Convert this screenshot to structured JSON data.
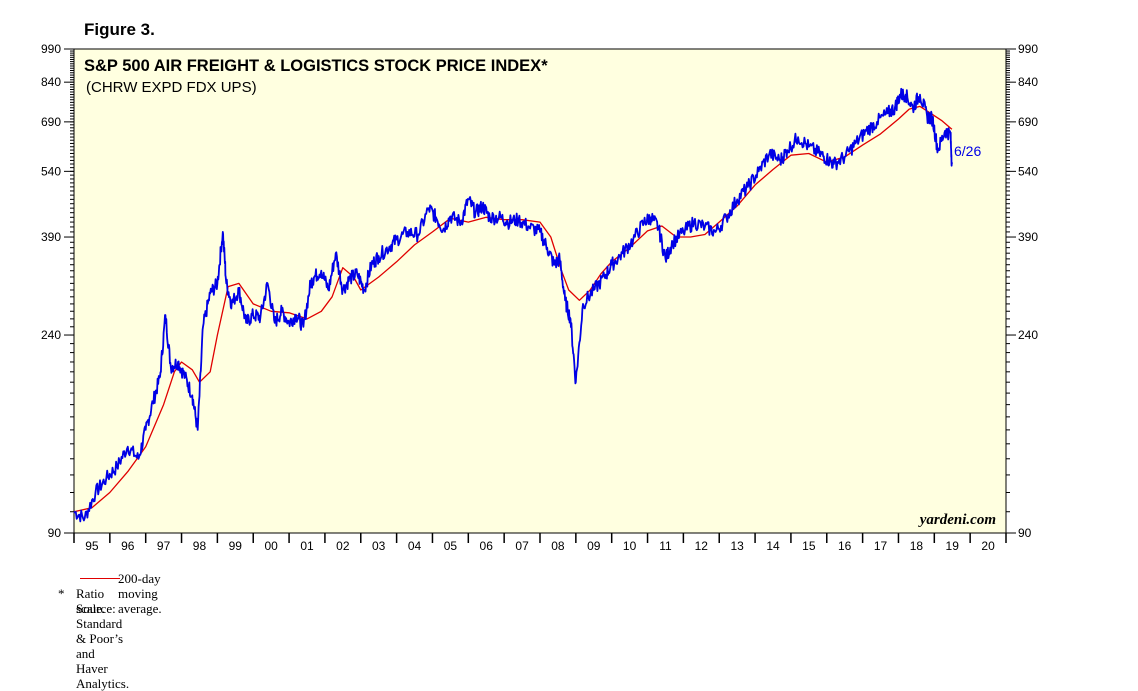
{
  "figure_label": "Figure 3.",
  "chart_data": {
    "type": "line",
    "title": "S&P 500 AIR FREIGHT & LOGISTICS STOCK PRICE INDEX*",
    "subtitle": "(CHRW EXPD FDX UPS)",
    "scale": "log",
    "ylim": [
      90,
      990
    ],
    "y_ticks": [
      90,
      240,
      390,
      540,
      690,
      840,
      990
    ],
    "y_tick_labels": [
      "90",
      "240",
      "390",
      "540",
      "690",
      "840",
      "990"
    ],
    "xlim": [
      1995,
      2021
    ],
    "x_tick_labels": [
      "95",
      "96",
      "97",
      "98",
      "99",
      "00",
      "01",
      "02",
      "03",
      "04",
      "05",
      "06",
      "07",
      "08",
      "09",
      "10",
      "11",
      "12",
      "13",
      "14",
      "15",
      "16",
      "17",
      "18",
      "19",
      "20"
    ],
    "series": [
      {
        "name": "S&P 500 Air Freight & Logistics",
        "color": "#0000e6",
        "x": [
          1995.0,
          1995.3,
          1995.6,
          1995.9,
          1996.2,
          1996.5,
          1996.8,
          1997.0,
          1997.2,
          1997.4,
          1997.55,
          1997.7,
          1997.9,
          1998.1,
          1998.3,
          1998.45,
          1998.6,
          1998.8,
          1999.0,
          1999.15,
          1999.25,
          1999.4,
          1999.6,
          1999.8,
          2000.0,
          2000.2,
          2000.4,
          2000.6,
          2000.8,
          2001.0,
          2001.2,
          2001.4,
          2001.6,
          2001.7,
          2001.9,
          2002.1,
          2002.3,
          2002.5,
          2002.7,
          2002.9,
          2003.1,
          2003.3,
          2003.5,
          2003.8,
          2004.0,
          2004.3,
          2004.6,
          2004.9,
          2005.1,
          2005.3,
          2005.5,
          2005.8,
          2006.0,
          2006.2,
          2006.4,
          2006.6,
          2006.9,
          2007.1,
          2007.4,
          2007.7,
          2008.0,
          2008.2,
          2008.4,
          2008.55,
          2008.7,
          2008.85,
          2009.0,
          2009.2,
          2009.5,
          2009.8,
          2010.0,
          2010.3,
          2010.6,
          2010.9,
          2011.1,
          2011.3,
          2011.5,
          2011.7,
          2012.0,
          2012.3,
          2012.6,
          2012.9,
          2013.2,
          2013.5,
          2013.8,
          2014.1,
          2014.4,
          2014.7,
          2014.9,
          2015.2,
          2015.5,
          2015.8,
          2016.0,
          2016.2,
          2016.5,
          2016.8,
          2017.1,
          2017.4,
          2017.7,
          2017.9,
          2018.05,
          2018.2,
          2018.4,
          2018.6,
          2018.8,
          2018.95,
          2019.1,
          2019.3,
          2019.45,
          2019.49
        ],
        "values": [
          100,
          97,
          110,
          118,
          125,
          138,
          130,
          150,
          172,
          195,
          265,
          205,
          210,
          195,
          178,
          150,
          250,
          295,
          310,
          400,
          310,
          280,
          300,
          255,
          265,
          262,
          310,
          255,
          270,
          255,
          265,
          250,
          310,
          320,
          330,
          300,
          360,
          300,
          318,
          325,
          300,
          340,
          355,
          372,
          385,
          400,
          395,
          450,
          430,
          405,
          432,
          420,
          470,
          440,
          455,
          430,
          430,
          420,
          425,
          410,
          400,
          370,
          340,
          350,
          285,
          260,
          190,
          280,
          300,
          320,
          340,
          360,
          385,
          420,
          430,
          410,
          350,
          380,
          400,
          420,
          410,
          400,
          430,
          470,
          500,
          540,
          590,
          570,
          600,
          640,
          610,
          590,
          575,
          560,
          580,
          620,
          660,
          690,
          720,
          740,
          790,
          790,
          740,
          790,
          710,
          700,
          600,
          660,
          650,
          560
        ],
        "end_label": "6/26"
      },
      {
        "name": "200-day moving average.",
        "color": "#e00000",
        "x": [
          1995.0,
          1995.5,
          1996.0,
          1996.5,
          1997.0,
          1997.5,
          1997.8,
          1998.0,
          1998.3,
          1998.5,
          1998.8,
          1999.0,
          1999.3,
          1999.6,
          2000.0,
          2000.5,
          2001.0,
          2001.5,
          2001.9,
          2002.2,
          2002.5,
          2002.8,
          2003.0,
          2003.5,
          2004.0,
          2004.5,
          2005.0,
          2005.5,
          2006.0,
          2006.5,
          2007.0,
          2007.5,
          2008.0,
          2008.3,
          2008.6,
          2008.8,
          2009.1,
          2009.4,
          2009.7,
          2010.0,
          2010.5,
          2011.0,
          2011.4,
          2011.8,
          2012.2,
          2012.6,
          2013.0,
          2013.5,
          2014.0,
          2014.5,
          2015.0,
          2015.5,
          2016.0,
          2016.5,
          2017.0,
          2017.5,
          2018.0,
          2018.3,
          2018.6,
          2018.9,
          2019.2,
          2019.49
        ],
        "values": [
          100,
          102,
          110,
          122,
          138,
          170,
          200,
          210,
          202,
          190,
          200,
          240,
          305,
          310,
          280,
          270,
          268,
          260,
          270,
          290,
          335,
          320,
          300,
          320,
          345,
          375,
          400,
          428,
          420,
          430,
          425,
          425,
          420,
          390,
          330,
          300,
          285,
          300,
          325,
          345,
          370,
          402,
          412,
          390,
          390,
          395,
          420,
          455,
          505,
          545,
          585,
          590,
          565,
          580,
          615,
          650,
          700,
          735,
          745,
          720,
          695,
          665
        ]
      }
    ],
    "legend": [
      "200-day moving average."
    ],
    "watermark": "yardeni.com"
  },
  "footnotes": {
    "ratio_star": "*",
    "ratio_text": "Ratio scale.",
    "source": "Source: Standard & Poor’s and Haver Analytics."
  }
}
